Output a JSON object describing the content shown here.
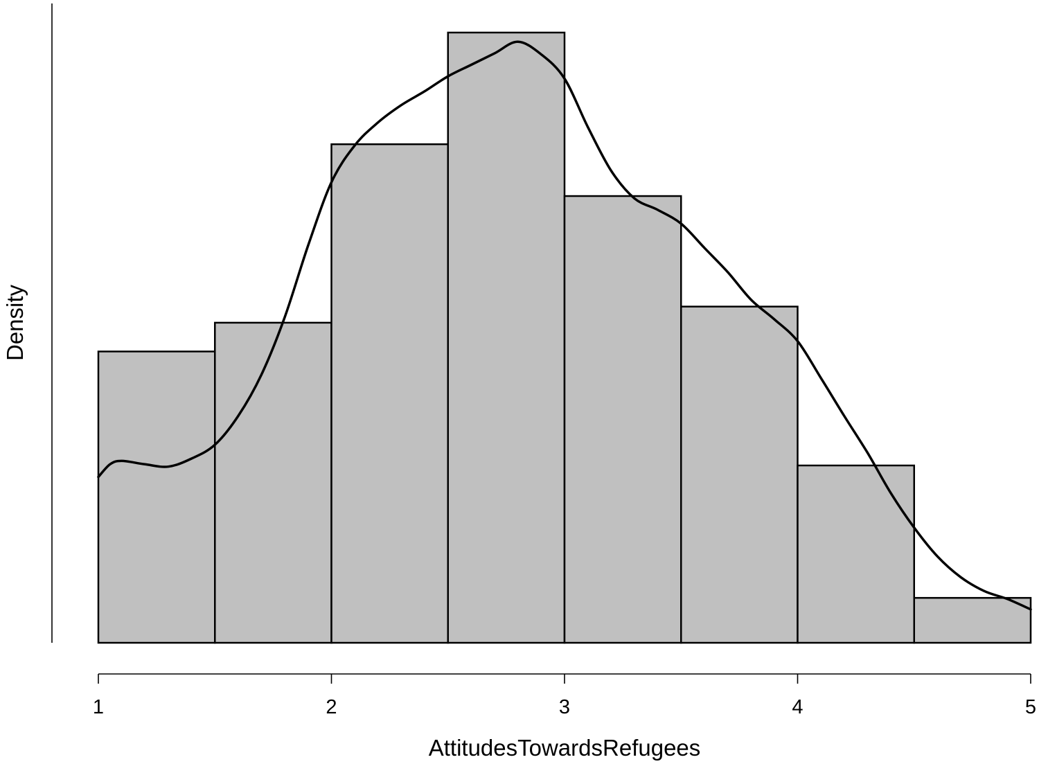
{
  "chart_data": {
    "type": "bar",
    "subtype": "histogram-with-density",
    "xlabel": "AttitudesTowardsRefugees",
    "ylabel": "Density",
    "xlim": [
      1,
      5
    ],
    "ylim": [
      0,
      0.53
    ],
    "grid": false,
    "x_ticks": [
      1,
      2,
      3,
      4,
      5
    ],
    "bar_color": "#c0c0c0",
    "line_color": "#000000",
    "bins": [
      {
        "start": 1.0,
        "end": 1.5,
        "density": 0.253
      },
      {
        "start": 1.5,
        "end": 2.0,
        "density": 0.278
      },
      {
        "start": 2.0,
        "end": 2.5,
        "density": 0.433
      },
      {
        "start": 2.5,
        "end": 3.0,
        "density": 0.53
      },
      {
        "start": 3.0,
        "end": 3.5,
        "density": 0.388
      },
      {
        "start": 3.5,
        "end": 4.0,
        "density": 0.292
      },
      {
        "start": 4.0,
        "end": 4.5,
        "density": 0.154
      },
      {
        "start": 4.5,
        "end": 5.0,
        "density": 0.039
      }
    ],
    "density_curve": {
      "x": [
        1.0,
        1.05,
        1.1,
        1.2,
        1.3,
        1.4,
        1.5,
        1.6,
        1.7,
        1.8,
        1.9,
        2.0,
        2.1,
        2.2,
        2.3,
        2.4,
        2.5,
        2.6,
        2.7,
        2.8,
        2.9,
        3.0,
        3.1,
        3.2,
        3.3,
        3.4,
        3.5,
        3.6,
        3.7,
        3.8,
        3.9,
        4.0,
        4.1,
        4.2,
        4.3,
        4.4,
        4.5,
        4.6,
        4.7,
        4.8,
        4.9,
        5.0
      ],
      "y": [
        0.144,
        0.155,
        0.158,
        0.155,
        0.153,
        0.16,
        0.172,
        0.197,
        0.233,
        0.283,
        0.345,
        0.4,
        0.432,
        0.452,
        0.467,
        0.479,
        0.492,
        0.502,
        0.512,
        0.522,
        0.511,
        0.49,
        0.448,
        0.41,
        0.386,
        0.376,
        0.364,
        0.343,
        0.322,
        0.298,
        0.281,
        0.262,
        0.23,
        0.197,
        0.165,
        0.13,
        0.1,
        0.075,
        0.057,
        0.045,
        0.038,
        0.029
      ]
    }
  }
}
